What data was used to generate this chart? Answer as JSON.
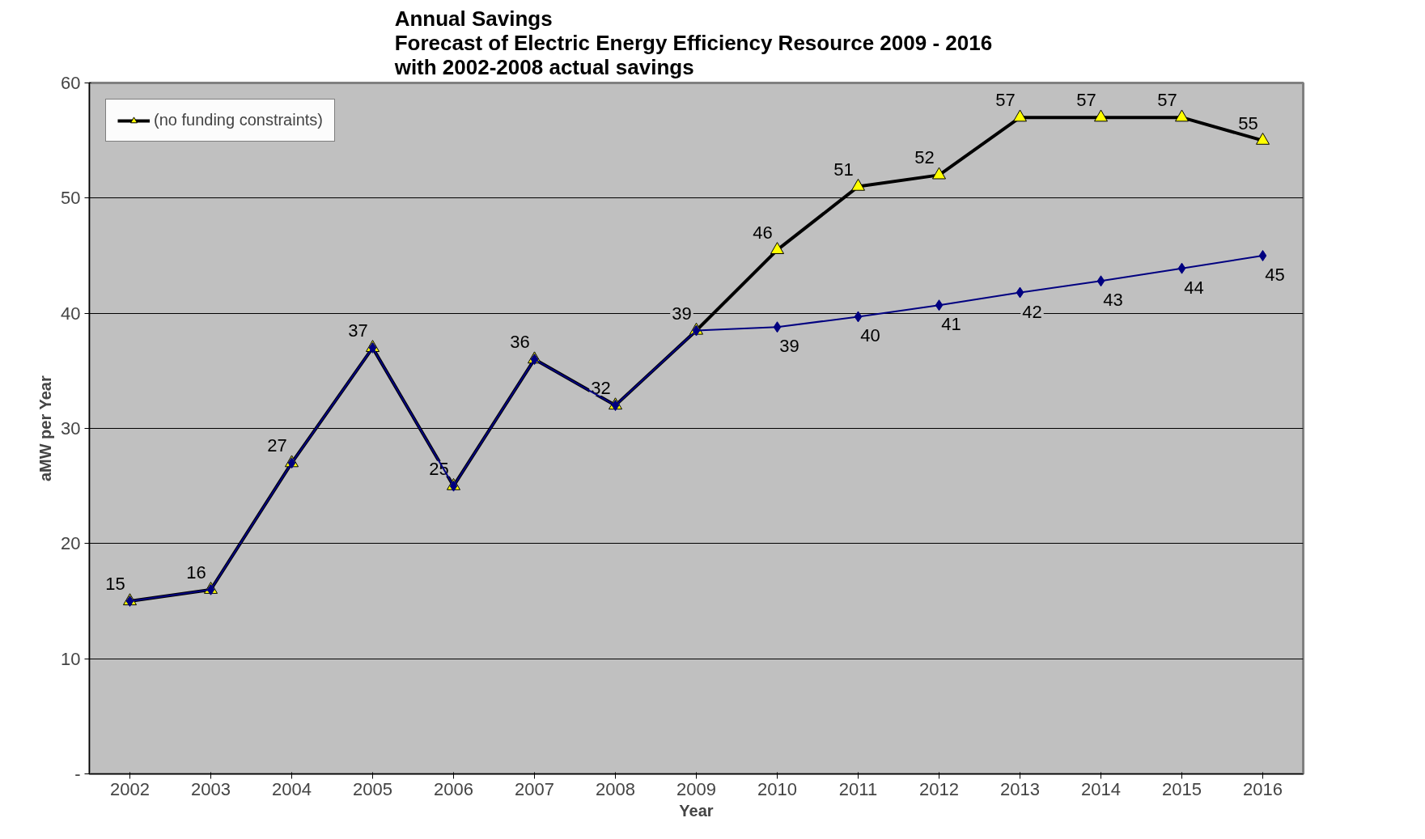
{
  "chart_data": {
    "type": "line",
    "title": "Annual Savings\nForecast of Electric Energy Efficiency Resource 2009 -  2016\nwith 2002-2008 actual savings",
    "xlabel": "Year",
    "ylabel": "aMW per Year",
    "categories": [
      "2002",
      "2003",
      "2004",
      "2005",
      "2006",
      "2007",
      "2008",
      "2009",
      "2010",
      "2011",
      "2012",
      "2013",
      "2014",
      "2015",
      "2016"
    ],
    "series": [
      {
        "name": "(no funding constraints)",
        "color": "#000000",
        "marker": "triangle",
        "values": [
          15,
          16,
          27,
          37,
          25,
          36,
          32,
          38.5,
          45.5,
          51,
          52,
          57,
          57,
          57,
          55
        ],
        "value_labels": [
          "15",
          "16",
          "27",
          "37",
          "25",
          "36",
          "32",
          "39",
          "46",
          "51",
          "52",
          "57",
          "57",
          "57",
          "55"
        ]
      },
      {
        "color": "#000080",
        "marker": "diamond",
        "values": [
          15,
          16,
          27,
          37,
          25,
          36,
          32,
          38.5,
          38.8,
          39.7,
          40.7,
          41.8,
          42.8,
          43.9,
          45
        ],
        "value_labels": [
          null,
          null,
          null,
          null,
          null,
          null,
          null,
          null,
          "39",
          "40",
          "41",
          "42",
          "43",
          "44",
          "45"
        ]
      }
    ],
    "ylim": [
      0,
      60
    ],
    "yticks": [
      {
        "value": 0,
        "label": "-"
      },
      10,
      20,
      30,
      40,
      50,
      60
    ],
    "grid": "y",
    "legend": "top left"
  }
}
